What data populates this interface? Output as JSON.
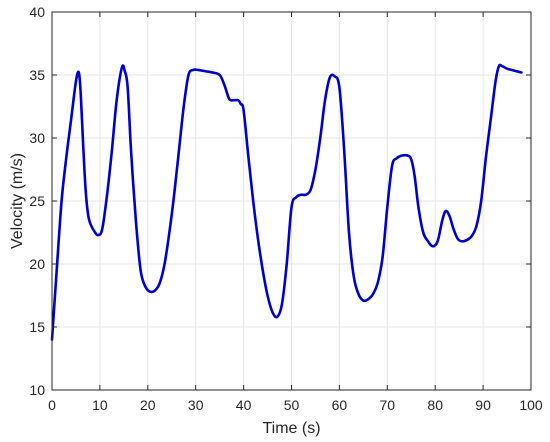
{
  "chart_data": {
    "type": "line",
    "title": "",
    "xlabel": "Time (s)",
    "ylabel": "Velocity (m/s)",
    "xlim": [
      0,
      100
    ],
    "ylim": [
      10,
      40
    ],
    "xticks": [
      0,
      10,
      20,
      30,
      40,
      50,
      60,
      70,
      80,
      90,
      100
    ],
    "yticks": [
      10,
      15,
      20,
      25,
      30,
      35,
      40
    ],
    "xtick_labels": [
      "0",
      "10",
      "20",
      "30",
      "40",
      "50",
      "60",
      "70",
      "80",
      "90",
      "100"
    ],
    "ytick_labels": [
      "10",
      "15",
      "20",
      "25",
      "30",
      "35",
      "40"
    ],
    "grid": true,
    "series": [
      {
        "color": "#0000cd",
        "x": [
          0,
          1,
          2,
          3,
          4,
          5,
          5.6,
          6,
          6.5,
          7,
          7.5,
          8,
          9,
          9.7,
          10.5,
          11.5,
          12.5,
          13.5,
          14.6,
          15.2,
          15.8,
          16.5,
          17.5,
          18.5,
          19.5,
          20.5,
          21.5,
          22.5,
          23.5,
          24.5,
          25.5,
          26.5,
          27.5,
          28.5,
          29.5,
          30.5,
          32,
          33.5,
          35,
          36,
          37,
          38,
          38.9,
          39.4,
          40,
          41,
          42,
          43,
          44,
          45,
          46,
          47,
          48,
          49,
          50,
          51,
          52,
          53,
          54,
          55,
          56,
          57,
          58,
          59,
          60,
          61,
          62,
          63,
          64,
          65,
          66,
          67,
          68,
          69,
          70,
          71,
          72,
          73,
          74.3,
          75,
          75.7,
          76.5,
          77.5,
          78.5,
          79.5,
          80.5,
          81.5,
          82.2,
          83,
          83.8,
          84.7,
          85.6,
          86.6,
          87.6,
          88.6,
          89.6,
          90.6,
          91.6,
          92.6,
          93.3,
          94,
          95,
          96,
          97,
          98
        ],
        "values": [
          14.0,
          19.6,
          25.0,
          28.5,
          31.5,
          34.5,
          35.2,
          33.5,
          29.5,
          26.0,
          24.0,
          23.2,
          22.5,
          22.3,
          22.8,
          25.5,
          29.0,
          33.0,
          35.6,
          35.3,
          34.0,
          29.0,
          23.5,
          19.5,
          18.2,
          17.8,
          17.9,
          18.5,
          20.0,
          22.5,
          25.5,
          29.0,
          32.5,
          35.0,
          35.4,
          35.4,
          35.3,
          35.2,
          35.0,
          34.2,
          33.1,
          33.0,
          33.0,
          32.7,
          32.2,
          28.5,
          25.0,
          22.0,
          19.5,
          17.5,
          16.2,
          15.8,
          16.8,
          20.0,
          24.5,
          25.3,
          25.5,
          25.5,
          25.9,
          27.5,
          30.0,
          33.0,
          34.8,
          34.9,
          34.0,
          29.0,
          22.5,
          19.0,
          17.6,
          17.1,
          17.2,
          17.6,
          18.5,
          20.5,
          24.5,
          27.8,
          28.4,
          28.6,
          28.6,
          28.3,
          27.0,
          24.5,
          22.5,
          21.8,
          21.4,
          21.8,
          23.5,
          24.2,
          23.8,
          22.8,
          22.0,
          21.8,
          21.9,
          22.2,
          23.0,
          25.0,
          28.5,
          31.5,
          34.5,
          35.7,
          35.7,
          35.5,
          35.4,
          35.3,
          35.2
        ]
      }
    ]
  }
}
